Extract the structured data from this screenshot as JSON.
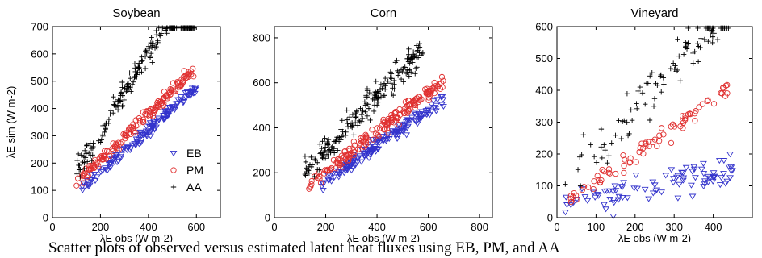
{
  "figure_caption": "Scatter plots of observed versus estimated latent heat fluxes using EB, PM, and AA",
  "chart_data": [
    {
      "type": "scatter",
      "title": "Soybean",
      "xlabel": "λE obs (W m-2)",
      "ylabel": "λE sim (W m-2)",
      "xlim": [
        0,
        700
      ],
      "ylim": [
        0,
        700
      ],
      "xticks": [
        "0",
        "200",
        "400",
        "600"
      ],
      "yticks": [
        "0",
        "100",
        "200",
        "300",
        "400",
        "500",
        "600",
        "700"
      ],
      "legend": {
        "position": "bottom-right",
        "entries": [
          "EB",
          "PM",
          "AA"
        ]
      },
      "series": [
        {
          "name": "EB",
          "marker": "triangle-down",
          "color": "#3333cc",
          "ranges": [
            [
              120,
              600
            ]
          ],
          "slope": 0.78,
          "intercept": 10,
          "spread": 25,
          "count": 150
        },
        {
          "name": "PM",
          "marker": "circle",
          "color": "#e03030",
          "ranges": [
            [
              95,
              590
            ]
          ],
          "slope": 0.85,
          "intercept": 40,
          "spread": 25,
          "count": 170
        },
        {
          "name": "AA",
          "marker": "plus",
          "color": "#000000",
          "ranges": [
            [
              100,
              360
            ],
            [
              350,
              590
            ]
          ],
          "slope": 1.45,
          "intercept": 20,
          "spread": 55,
          "count": 190
        }
      ]
    },
    {
      "type": "scatter",
      "title": "Corn",
      "xlabel": "λE obs (W m-2)",
      "ylabel": "",
      "xlim": [
        0,
        850
      ],
      "ylim": [
        0,
        850
      ],
      "xticks": [
        "0",
        "200",
        "400",
        "600",
        "800"
      ],
      "yticks": [
        "0",
        "200",
        "400",
        "600",
        "800"
      ],
      "series": [
        {
          "name": "EB",
          "marker": "triangle-down",
          "color": "#3333cc",
          "ranges": [
            [
              170,
              660
            ]
          ],
          "slope": 0.8,
          "intercept": 0,
          "spread": 35,
          "count": 170
        },
        {
          "name": "PM",
          "marker": "circle",
          "color": "#e03030",
          "ranges": [
            [
              110,
              660
            ]
          ],
          "slope": 0.88,
          "intercept": 30,
          "spread": 35,
          "count": 190
        },
        {
          "name": "AA",
          "marker": "plus",
          "color": "#000000",
          "ranges": [
            [
              110,
              580
            ]
          ],
          "slope": 1.2,
          "intercept": 60,
          "spread": 70,
          "count": 210
        }
      ]
    },
    {
      "type": "scatter",
      "title": "Vineyard",
      "xlabel": "λE obs (W m-2)",
      "ylabel": "",
      "xlim": [
        0,
        500
      ],
      "ylim": [
        0,
        600
      ],
      "xticks": [
        "0",
        "100",
        "200",
        "300",
        "400"
      ],
      "yticks": [
        "0",
        "100",
        "200",
        "300",
        "400",
        "500",
        "600"
      ],
      "series": [
        {
          "name": "EB",
          "marker": "triangle-down",
          "color": "#3333cc",
          "ranges": [
            [
              20,
              450
            ]
          ],
          "slope": 0.25,
          "intercept": 35,
          "spread": 55,
          "count": 90
        },
        {
          "name": "PM",
          "marker": "circle",
          "color": "#e03030",
          "ranges": [
            [
              20,
              440
            ]
          ],
          "slope": 0.85,
          "intercept": 30,
          "spread": 30,
          "count": 80
        },
        {
          "name": "AA",
          "marker": "plus",
          "color": "#000000",
          "ranges": [
            [
              20,
              440
            ]
          ],
          "slope": 1.3,
          "intercept": 80,
          "spread": 80,
          "count": 100
        }
      ]
    }
  ]
}
